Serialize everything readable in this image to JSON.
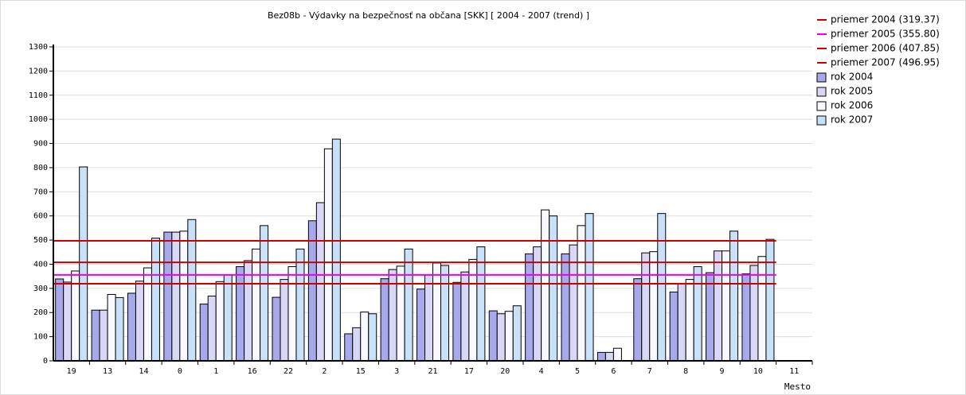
{
  "chart_data": {
    "type": "bar",
    "title": "Bez08b - Výdavky na bezpečnosť na občana [SKK]  [ 2004 - 2007 (trend) ]",
    "x_label": "Mesto",
    "categories": [
      "19",
      "13",
      "14",
      "0",
      "1",
      "16",
      "22",
      "2",
      "15",
      "3",
      "21",
      "17",
      "20",
      "4",
      "5",
      "6",
      "7",
      "8",
      "9",
      "10",
      "11"
    ],
    "series": [
      {
        "name": "rok 2004",
        "color": "#a8a8ec",
        "values": [
          339,
          210,
          280,
          533,
          235,
          390,
          263,
          580,
          112,
          340,
          297,
          325,
          207,
          443,
          443,
          35,
          340,
          285,
          365,
          360,
          null
        ]
      },
      {
        "name": "rok 2005",
        "color": "#d8d8f6",
        "values": [
          326,
          210,
          330,
          533,
          268,
          415,
          337,
          655,
          137,
          378,
          355,
          368,
          195,
          472,
          480,
          35,
          447,
          320,
          455,
          395,
          null
        ]
      },
      {
        "name": "rok 2006",
        "color": "#f8f8ff",
        "values": [
          372,
          275,
          385,
          537,
          328,
          463,
          390,
          878,
          202,
          392,
          405,
          420,
          205,
          625,
          560,
          52,
          452,
          337,
          455,
          432,
          null
        ]
      },
      {
        "name": "rok 2007",
        "color": "#c8e0f8",
        "values": [
          803,
          262,
          508,
          585,
          355,
          560,
          463,
          918,
          195,
          463,
          395,
          472,
          228,
          600,
          610,
          null,
          610,
          390,
          537,
          503,
          null
        ]
      }
    ],
    "reference_lines": [
      {
        "name": "priemer 2004 (319.37)",
        "value": 319.37,
        "color": "#cc0000"
      },
      {
        "name": "priemer 2005 (355.80)",
        "value": 355.8,
        "color": "#ee00ee"
      },
      {
        "name": "priemer 2006 (407.85)",
        "value": 407.85,
        "color": "#cc0000"
      },
      {
        "name": "priemer 2007 (496.95)",
        "value": 496.95,
        "color": "#cc0000"
      }
    ],
    "ylim": [
      0,
      1300
    ],
    "yticks": [
      0,
      100,
      200,
      300,
      400,
      500,
      600,
      700,
      800,
      900,
      1000,
      1100,
      1200,
      1300
    ],
    "grid": true
  }
}
